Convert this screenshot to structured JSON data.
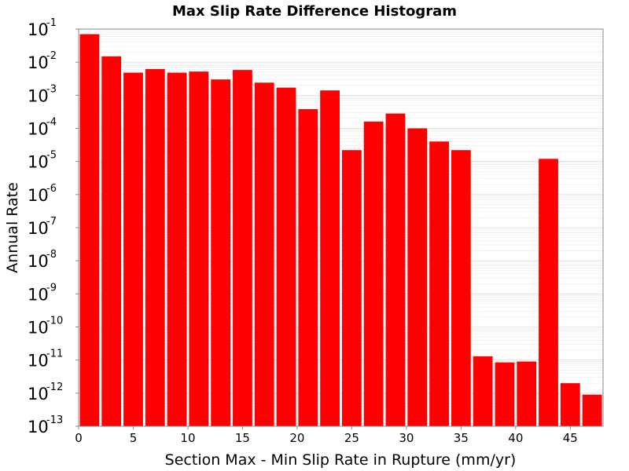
{
  "chart_data": {
    "type": "bar",
    "title": "Max Slip Rate Difference Histogram",
    "xlabel": "Section Max - Min Slip Rate in Rupture (mm/yr)",
    "ylabel": "Annual Rate",
    "y_scale": "log",
    "ylim": [
      1e-13,
      0.1
    ],
    "xlim": [
      0,
      48
    ],
    "bin_width": 2,
    "x_ticks": [
      0,
      5,
      10,
      15,
      20,
      25,
      30,
      35,
      40,
      45
    ],
    "y_ticks": [
      {
        "base": "10",
        "exp": "-1",
        "value": 0.1
      },
      {
        "base": "10",
        "exp": "-2",
        "value": 0.01
      },
      {
        "base": "10",
        "exp": "-3",
        "value": 0.001
      },
      {
        "base": "10",
        "exp": "-4",
        "value": 0.0001
      },
      {
        "base": "10",
        "exp": "-5",
        "value": 1e-05
      },
      {
        "base": "10",
        "exp": "-6",
        "value": 1e-06
      },
      {
        "base": "10",
        "exp": "-7",
        "value": 1e-07
      },
      {
        "base": "10",
        "exp": "-8",
        "value": 1e-08
      },
      {
        "base": "10",
        "exp": "-9",
        "value": 1e-09
      },
      {
        "base": "10",
        "exp": "-10",
        "value": 1e-10
      },
      {
        "base": "10",
        "exp": "-11",
        "value": 1e-11
      },
      {
        "base": "10",
        "exp": "-12",
        "value": 1e-12
      },
      {
        "base": "10",
        "exp": "-13",
        "value": 1e-13
      }
    ],
    "grid": true,
    "bar_color": "#ff0000",
    "bins": [
      {
        "x": 1,
        "value": 0.07
      },
      {
        "x": 3,
        "value": 0.015
      },
      {
        "x": 5,
        "value": 0.0048
      },
      {
        "x": 7,
        "value": 0.0062
      },
      {
        "x": 9,
        "value": 0.0048
      },
      {
        "x": 11,
        "value": 0.0052
      },
      {
        "x": 13,
        "value": 0.003
      },
      {
        "x": 15,
        "value": 0.0058
      },
      {
        "x": 17,
        "value": 0.0024
      },
      {
        "x": 19,
        "value": 0.0017
      },
      {
        "x": 21,
        "value": 0.00038
      },
      {
        "x": 23,
        "value": 0.0014
      },
      {
        "x": 25,
        "value": 2.2e-05
      },
      {
        "x": 27,
        "value": 0.00016
      },
      {
        "x": 29,
        "value": 0.00028
      },
      {
        "x": 31,
        "value": 0.0001
      },
      {
        "x": 33,
        "value": 4e-05
      },
      {
        "x": 35,
        "value": 2.2e-05
      },
      {
        "x": 37,
        "value": 1.3e-11
      },
      {
        "x": 39,
        "value": 8.5e-12
      },
      {
        "x": 41,
        "value": 9e-12
      },
      {
        "x": 43,
        "value": 1.2e-05
      },
      {
        "x": 45,
        "value": 2e-12
      },
      {
        "x": 47,
        "value": 9e-13
      }
    ]
  }
}
